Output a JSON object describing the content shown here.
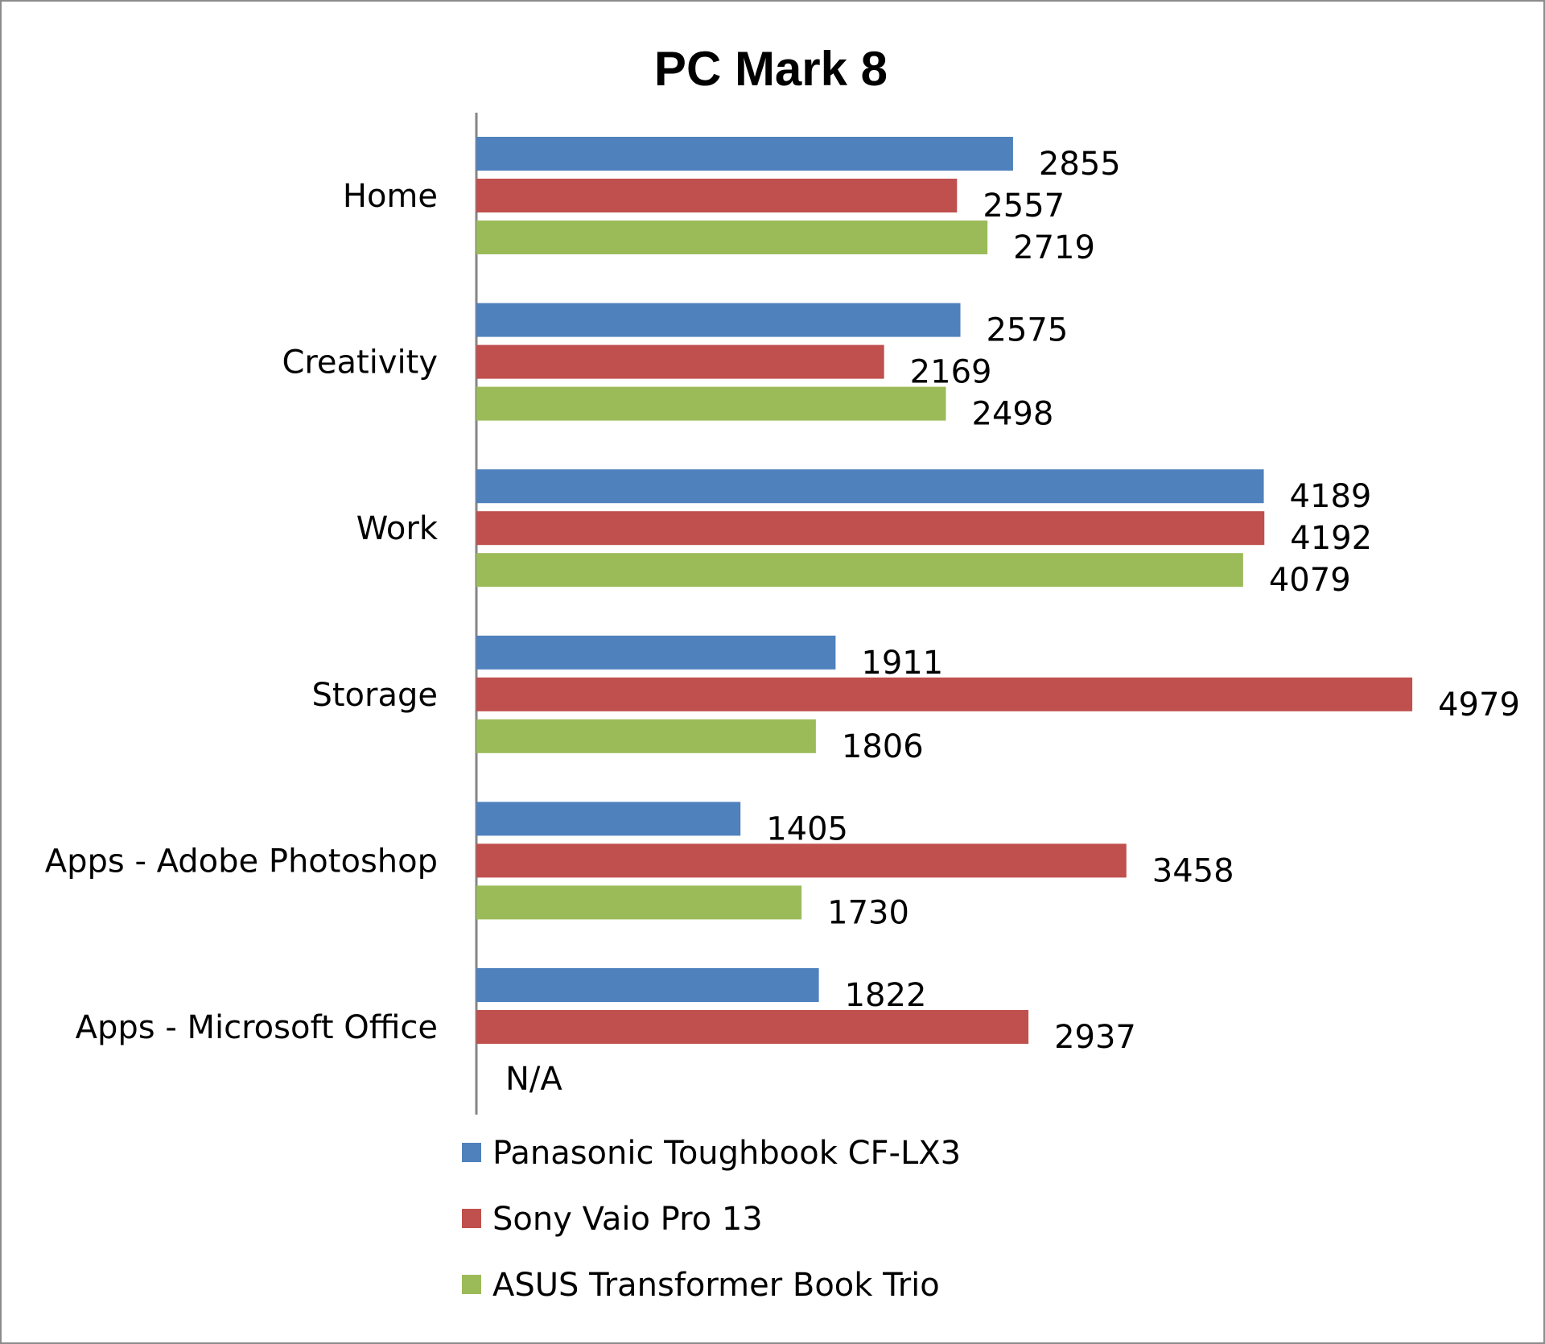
{
  "chart_data": {
    "type": "bar",
    "orientation": "horizontal",
    "title": "PC Mark 8",
    "categories": [
      "Home",
      "Creativity",
      "Work",
      "Storage",
      "Apps - Adobe Photoshop",
      "Apps - Microsoft Office"
    ],
    "series": [
      {
        "name": "Panasonic Toughbook CF-LX3",
        "color": "#4f81bd",
        "values": [
          2855,
          2575,
          4189,
          1911,
          1405,
          1822
        ],
        "labels": [
          "2855",
          "2575",
          "4189",
          "1911",
          "1405",
          "1822"
        ]
      },
      {
        "name": "Sony Vaio Pro 13",
        "color": "#c0504d",
        "values": [
          2557,
          2169,
          4192,
          4979,
          3458,
          2937
        ],
        "labels": [
          "2557",
          "2169",
          "4192",
          "4979",
          "3458",
          "2937"
        ]
      },
      {
        "name": "ASUS Transformer Book Trio",
        "color": "#9bbb59",
        "values": [
          2719,
          2498,
          4079,
          1806,
          1730,
          null
        ],
        "labels": [
          "2719",
          "2498",
          "4079",
          "1806",
          "1730",
          "N/A"
        ]
      }
    ],
    "xlim": [
      0,
      5000
    ],
    "grid": false,
    "legend_position": "bottom"
  }
}
